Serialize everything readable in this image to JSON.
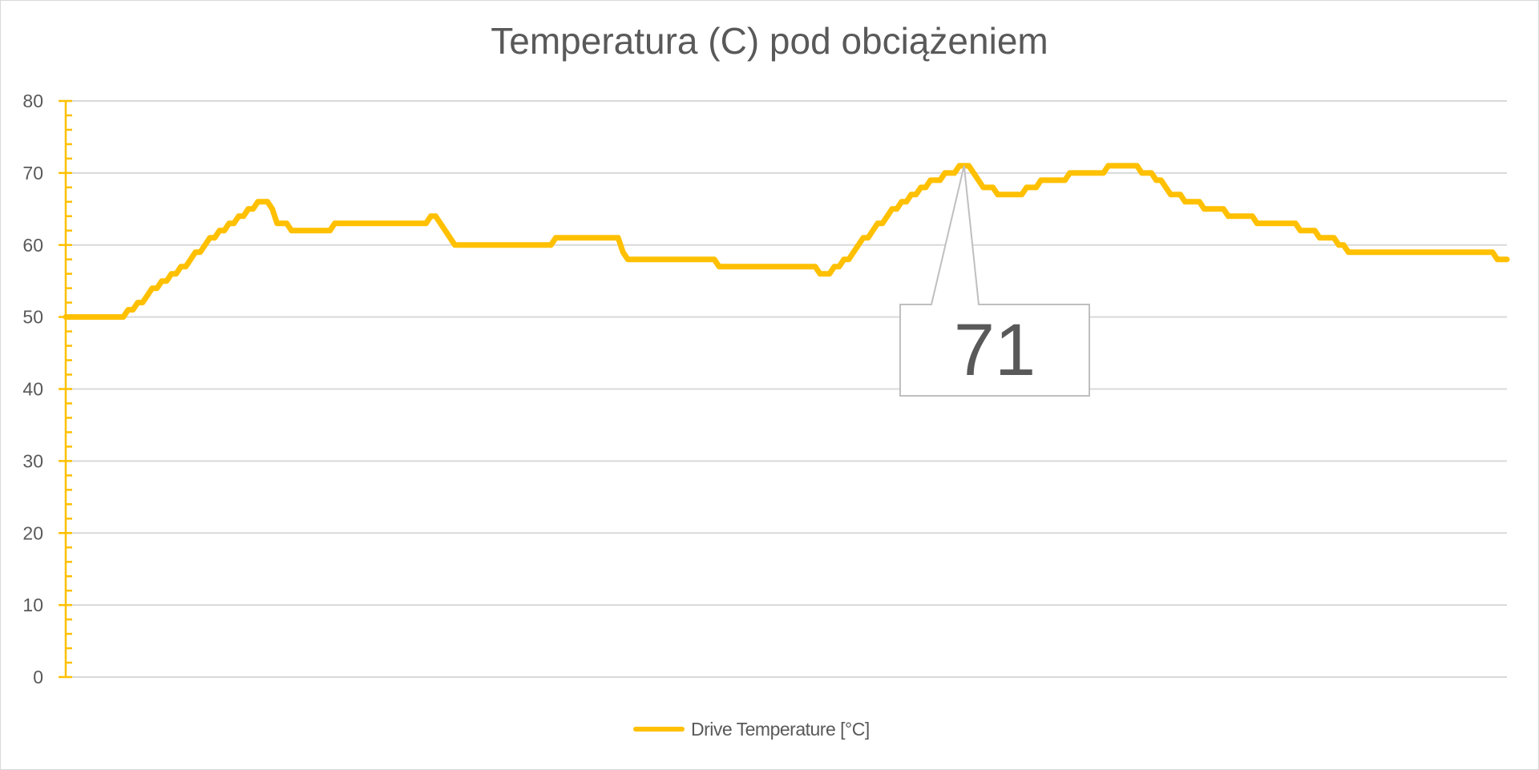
{
  "chart_data": {
    "type": "line",
    "title": "Temperatura (C) pod obciążeniem",
    "xlabel": "",
    "ylabel": "",
    "ylim": [
      0,
      80
    ],
    "yticks": [
      "0",
      "10",
      "20",
      "30",
      "40",
      "50",
      "60",
      "70",
      "80"
    ],
    "minor_tick_step": 2,
    "grid": true,
    "legend_position": "bottom",
    "series": [
      {
        "name": "Drive Temperature [°C]",
        "color": "#FFC000",
        "runs_value_count": [
          [
            50,
            13
          ],
          [
            51,
            2
          ],
          [
            52,
            2
          ],
          [
            53,
            1
          ],
          [
            54,
            2
          ],
          [
            55,
            2
          ],
          [
            56,
            2
          ],
          [
            57,
            2
          ],
          [
            58,
            1
          ],
          [
            59,
            2
          ],
          [
            60,
            1
          ],
          [
            61,
            2
          ],
          [
            62,
            2
          ],
          [
            63,
            2
          ],
          [
            64,
            2
          ],
          [
            65,
            2
          ],
          [
            66,
            3
          ],
          [
            65,
            1
          ],
          [
            63,
            3
          ],
          [
            62,
            9
          ],
          [
            63,
            20
          ],
          [
            64,
            2
          ],
          [
            63,
            1
          ],
          [
            62,
            1
          ],
          [
            61,
            1
          ],
          [
            60,
            21
          ],
          [
            61,
            14
          ],
          [
            59,
            1
          ],
          [
            58,
            19
          ],
          [
            57,
            21
          ],
          [
            56,
            3
          ],
          [
            57,
            2
          ],
          [
            58,
            2
          ],
          [
            59,
            1
          ],
          [
            60,
            1
          ],
          [
            61,
            2
          ],
          [
            62,
            1
          ],
          [
            63,
            2
          ],
          [
            64,
            1
          ],
          [
            65,
            2
          ],
          [
            66,
            2
          ],
          [
            67,
            2
          ],
          [
            68,
            2
          ],
          [
            69,
            3
          ],
          [
            70,
            3
          ],
          [
            71,
            3
          ],
          [
            70,
            1
          ],
          [
            69,
            1
          ],
          [
            68,
            3
          ],
          [
            67,
            6
          ],
          [
            68,
            3
          ],
          [
            69,
            6
          ],
          [
            70,
            8
          ],
          [
            71,
            7
          ],
          [
            70,
            3
          ],
          [
            69,
            2
          ],
          [
            68,
            1
          ],
          [
            67,
            3
          ],
          [
            66,
            4
          ],
          [
            65,
            5
          ],
          [
            64,
            6
          ],
          [
            63,
            9
          ],
          [
            62,
            4
          ],
          [
            61,
            4
          ],
          [
            60,
            2
          ],
          [
            59,
            31
          ],
          [
            58,
            3
          ]
        ]
      }
    ],
    "annotations": [
      {
        "type": "data-label-callout",
        "point_index": 187,
        "text": "71"
      }
    ]
  },
  "colors": {
    "axis": "#FFC000",
    "grid": "#d9d9d9",
    "text": "#595959",
    "callout_border": "#bfbfbf"
  }
}
